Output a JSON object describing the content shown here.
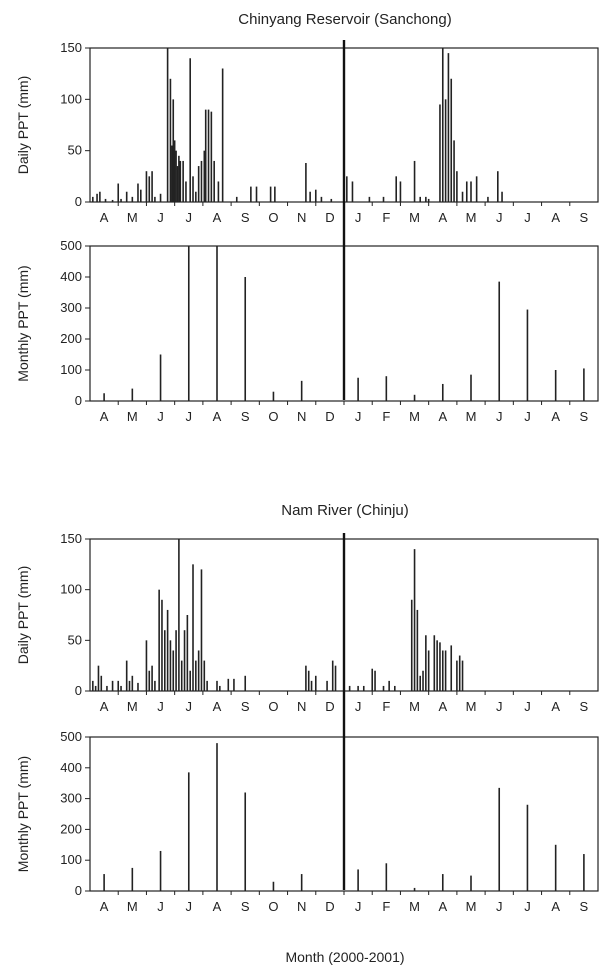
{
  "figure": {
    "xlabel": "Month (2000-2001)"
  },
  "chart_data": [
    {
      "type": "bar",
      "title": "Chinyang Reservoir (Sanchong)",
      "ylabel": "Daily PPT (mm)",
      "ylim": [
        0,
        150
      ],
      "yticks": [
        0,
        50,
        100,
        150
      ],
      "categories": [
        "A",
        "M",
        "J",
        "J",
        "A",
        "S",
        "O",
        "N",
        "D",
        "J",
        "F",
        "M",
        "A",
        "M",
        "J",
        "J",
        "A",
        "S"
      ],
      "x_unit": "month index (0 = start of April 2000)",
      "points": [
        [
          0.1,
          5
        ],
        [
          0.25,
          8
        ],
        [
          0.35,
          10
        ],
        [
          0.55,
          3
        ],
        [
          0.8,
          2
        ],
        [
          1.0,
          18
        ],
        [
          1.1,
          3
        ],
        [
          1.3,
          10
        ],
        [
          1.5,
          5
        ],
        [
          1.7,
          18
        ],
        [
          1.8,
          12
        ],
        [
          2.0,
          30
        ],
        [
          2.1,
          25
        ],
        [
          2.2,
          30
        ],
        [
          2.3,
          5
        ],
        [
          2.5,
          8
        ],
        [
          2.75,
          150
        ],
        [
          2.85,
          120
        ],
        [
          2.9,
          55
        ],
        [
          2.95,
          100
        ],
        [
          3.0,
          60
        ],
        [
          3.05,
          50
        ],
        [
          3.1,
          35
        ],
        [
          3.15,
          45
        ],
        [
          3.2,
          40
        ],
        [
          3.3,
          40
        ],
        [
          3.4,
          20
        ],
        [
          3.55,
          140
        ],
        [
          3.65,
          25
        ],
        [
          3.75,
          10
        ],
        [
          3.85,
          35
        ],
        [
          3.95,
          40
        ],
        [
          4.05,
          50
        ],
        [
          4.1,
          90
        ],
        [
          4.2,
          90
        ],
        [
          4.3,
          88
        ],
        [
          4.4,
          40
        ],
        [
          4.55,
          20
        ],
        [
          4.7,
          130
        ],
        [
          5.2,
          5
        ],
        [
          5.7,
          15
        ],
        [
          5.9,
          15
        ],
        [
          6.4,
          15
        ],
        [
          6.55,
          15
        ],
        [
          7.65,
          38
        ],
        [
          7.8,
          10
        ],
        [
          8.0,
          12
        ],
        [
          8.2,
          5
        ],
        [
          8.55,
          3
        ],
        [
          9.0,
          30
        ],
        [
          9.1,
          25
        ],
        [
          9.3,
          20
        ],
        [
          9.9,
          5
        ],
        [
          10.4,
          5
        ],
        [
          10.85,
          25
        ],
        [
          11.0,
          20
        ],
        [
          11.5,
          40
        ],
        [
          11.7,
          5
        ],
        [
          11.9,
          5
        ],
        [
          12.0,
          3
        ],
        [
          12.4,
          95
        ],
        [
          12.5,
          150
        ],
        [
          12.6,
          100
        ],
        [
          12.7,
          145
        ],
        [
          12.8,
          120
        ],
        [
          12.9,
          60
        ],
        [
          13.0,
          30
        ],
        [
          13.2,
          10
        ],
        [
          13.35,
          20
        ],
        [
          13.5,
          20
        ],
        [
          13.7,
          25
        ],
        [
          14.1,
          5
        ],
        [
          14.45,
          30
        ],
        [
          14.6,
          10
        ]
      ]
    },
    {
      "type": "bar",
      "ylabel": "Monthly PPT (mm)",
      "ylim": [
        0,
        500
      ],
      "yticks": [
        0,
        100,
        200,
        300,
        400,
        500
      ],
      "categories": [
        "A",
        "M",
        "J",
        "J",
        "A",
        "S",
        "O",
        "N",
        "D",
        "J",
        "F",
        "M",
        "A",
        "M",
        "J",
        "J",
        "A",
        "S"
      ],
      "values": [
        25,
        40,
        150,
        500,
        500,
        400,
        30,
        65,
        0,
        75,
        80,
        20,
        55,
        85,
        385,
        295,
        100,
        105
      ]
    },
    {
      "type": "bar",
      "title": "Nam River (Chinju)",
      "ylabel": "Daily PPT (mm)",
      "ylim": [
        0,
        150
      ],
      "yticks": [
        0,
        50,
        100,
        150
      ],
      "categories": [
        "A",
        "M",
        "J",
        "J",
        "A",
        "S",
        "O",
        "N",
        "D",
        "J",
        "F",
        "M",
        "A",
        "M",
        "J",
        "J",
        "A",
        "S"
      ],
      "x_unit": "month index (0 = start of April 2000)",
      "points": [
        [
          0.1,
          10
        ],
        [
          0.2,
          5
        ],
        [
          0.3,
          25
        ],
        [
          0.4,
          15
        ],
        [
          0.6,
          5
        ],
        [
          0.8,
          10
        ],
        [
          1.0,
          10
        ],
        [
          1.1,
          5
        ],
        [
          1.3,
          30
        ],
        [
          1.4,
          10
        ],
        [
          1.5,
          15
        ],
        [
          1.7,
          8
        ],
        [
          2.0,
          50
        ],
        [
          2.1,
          20
        ],
        [
          2.2,
          25
        ],
        [
          2.3,
          10
        ],
        [
          2.45,
          100
        ],
        [
          2.55,
          90
        ],
        [
          2.65,
          60
        ],
        [
          2.75,
          80
        ],
        [
          2.85,
          50
        ],
        [
          2.95,
          40
        ],
        [
          3.05,
          60
        ],
        [
          3.15,
          150
        ],
        [
          3.25,
          30
        ],
        [
          3.35,
          60
        ],
        [
          3.45,
          75
        ],
        [
          3.55,
          20
        ],
        [
          3.65,
          125
        ],
        [
          3.75,
          30
        ],
        [
          3.85,
          40
        ],
        [
          3.95,
          120
        ],
        [
          4.05,
          30
        ],
        [
          4.15,
          10
        ],
        [
          4.5,
          10
        ],
        [
          4.6,
          5
        ],
        [
          4.9,
          12
        ],
        [
          5.1,
          12
        ],
        [
          5.5,
          15
        ],
        [
          7.65,
          25
        ],
        [
          7.75,
          20
        ],
        [
          7.85,
          10
        ],
        [
          8.0,
          15
        ],
        [
          8.4,
          10
        ],
        [
          8.6,
          30
        ],
        [
          8.7,
          25
        ],
        [
          9.0,
          10
        ],
        [
          9.2,
          5
        ],
        [
          9.5,
          5
        ],
        [
          9.7,
          5
        ],
        [
          10.0,
          22
        ],
        [
          10.1,
          20
        ],
        [
          10.4,
          5
        ],
        [
          10.6,
          10
        ],
        [
          10.8,
          5
        ],
        [
          11.4,
          90
        ],
        [
          11.5,
          140
        ],
        [
          11.6,
          80
        ],
        [
          11.7,
          15
        ],
        [
          11.8,
          20
        ],
        [
          11.9,
          55
        ],
        [
          12.0,
          40
        ],
        [
          12.2,
          55
        ],
        [
          12.3,
          50
        ],
        [
          12.4,
          48
        ],
        [
          12.5,
          40
        ],
        [
          12.6,
          40
        ],
        [
          12.8,
          45
        ],
        [
          13.0,
          30
        ],
        [
          13.1,
          35
        ],
        [
          13.2,
          30
        ]
      ]
    },
    {
      "type": "bar",
      "ylabel": "Monthly PPT (mm)",
      "ylim": [
        0,
        500
      ],
      "yticks": [
        0,
        100,
        200,
        300,
        400,
        500
      ],
      "categories": [
        "A",
        "M",
        "J",
        "J",
        "A",
        "S",
        "O",
        "N",
        "D",
        "J",
        "F",
        "M",
        "A",
        "M",
        "J",
        "J",
        "A",
        "S"
      ],
      "values": [
        55,
        75,
        130,
        385,
        480,
        320,
        30,
        55,
        0,
        70,
        90,
        10,
        55,
        50,
        335,
        280,
        150,
        120
      ]
    }
  ]
}
